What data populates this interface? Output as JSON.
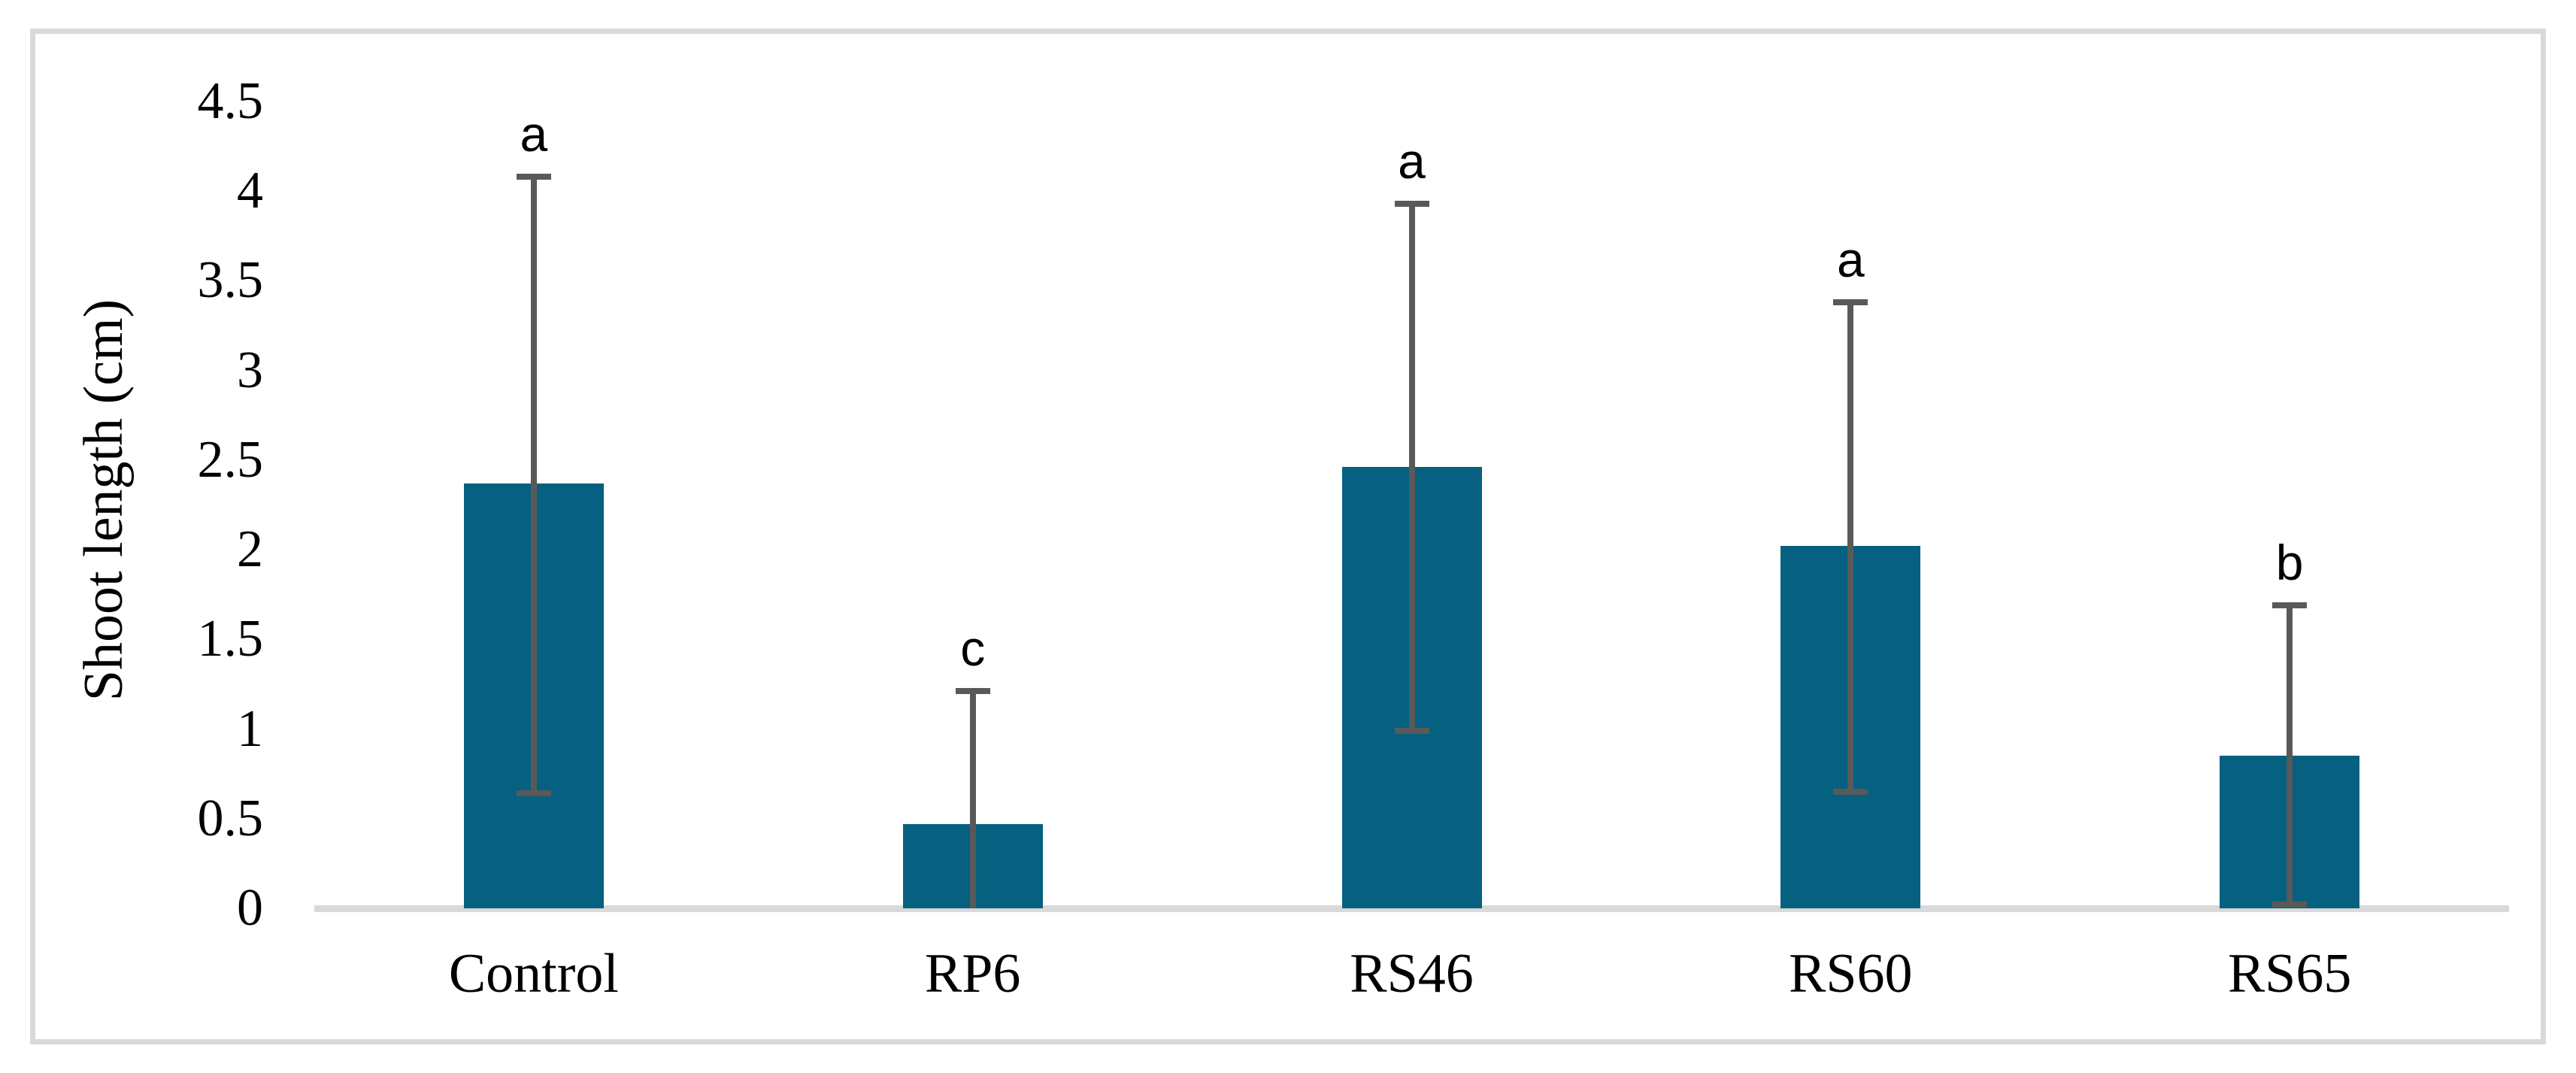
{
  "figure": {
    "background": "#FFFFFF",
    "border_color": "#D9D9D9"
  },
  "chart_data": {
    "type": "bar",
    "title": "",
    "categories": [
      "Control",
      "RP6",
      "RS46",
      "RS60",
      "RS65"
    ],
    "values": [
      2.37,
      0.47,
      2.46,
      2.02,
      0.85
    ],
    "error_upper": [
      4.08,
      1.21,
      3.93,
      3.38,
      1.69
    ],
    "error_lower": [
      0.64,
      0,
      0.99,
      0.65,
      0.02
    ],
    "sig_letters": [
      "a",
      "c",
      "a",
      "a",
      "b"
    ],
    "xlabel": "",
    "ylabel": "Shoot length (cm)",
    "ylim": [
      0,
      4.5
    ],
    "ytick_step": 0.5,
    "ytick_labels": [
      "0",
      "0.5",
      "1",
      "1.5",
      "2",
      "2.5",
      "3",
      "3.5",
      "4",
      "4.5"
    ],
    "grid": false,
    "legend": false,
    "bar_color": "#06607F",
    "error_bar_color": "#595959",
    "axis_line_color": "#D9D9D9",
    "text_color": "#000000"
  }
}
